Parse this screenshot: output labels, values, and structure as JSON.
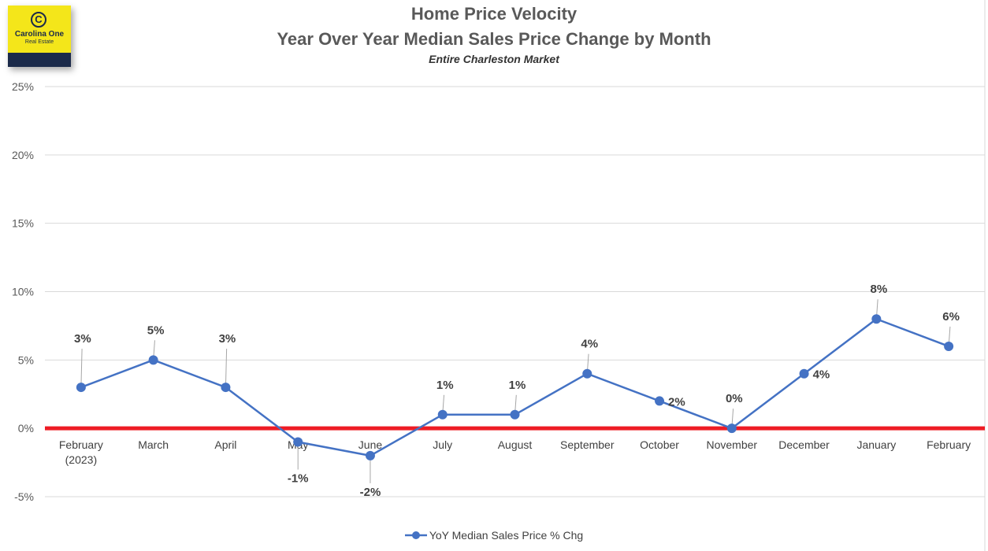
{
  "logo": {
    "name": "Carolina One",
    "sub": "Real Estate",
    "symbol": "C"
  },
  "chart_data": {
    "type": "line",
    "title": "Home Price Velocity",
    "subtitle": "Year Over Year Median Sales Price Change by Month",
    "caption": "Entire Charleston Market",
    "xlabel": "",
    "ylabel": "",
    "categories": [
      "February\n(2023)",
      "March",
      "April",
      "May",
      "June",
      "July",
      "August",
      "September",
      "October",
      "November",
      "December",
      "January",
      "February"
    ],
    "series": [
      {
        "name": "YoY Median Sales Price % Chg",
        "values": [
          3,
          5,
          3,
          -1,
          -2,
          1,
          1,
          4,
          2,
          0,
          4,
          8,
          6
        ],
        "data_labels": [
          "3%",
          "5%",
          "3%",
          "-1%",
          "-2%",
          "1%",
          "1%",
          "4%",
          "2%",
          "0%",
          "4%",
          "8%",
          "6%"
        ],
        "color": "#4472c4"
      }
    ],
    "ylim": [
      -5,
      25
    ],
    "yticks": [
      -5,
      0,
      5,
      10,
      15,
      20,
      25
    ],
    "ytick_labels": [
      "-5%",
      "0%",
      "5%",
      "10%",
      "15%",
      "20%",
      "25%"
    ],
    "grid": true,
    "zero_line_color": "#ee1c25",
    "legend_position": "bottom"
  }
}
